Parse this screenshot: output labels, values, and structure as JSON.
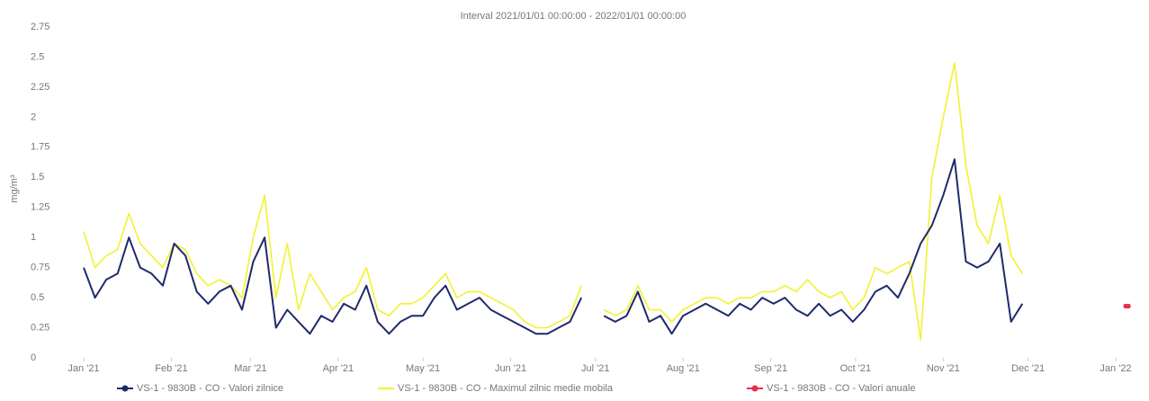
{
  "chart_data": {
    "type": "line",
    "title": "Interval 2021/01/01 00:00:00 - 2022/01/01 00:00:00",
    "y_label": "mg/m³",
    "xlim": [
      0,
      372
    ],
    "xticks": [
      {
        "value": 0,
        "label": "Jan '21"
      },
      {
        "value": 31,
        "label": "Feb '21"
      },
      {
        "value": 59,
        "label": "Mar '21"
      },
      {
        "value": 90,
        "label": "Apr '21"
      },
      {
        "value": 120,
        "label": "May '21"
      },
      {
        "value": 151,
        "label": "Jun '21"
      },
      {
        "value": 181,
        "label": "Jul '21"
      },
      {
        "value": 212,
        "label": "Aug '21"
      },
      {
        "value": 243,
        "label": "Sep '21"
      },
      {
        "value": 273,
        "label": "Oct '21"
      },
      {
        "value": 304,
        "label": "Nov '21"
      },
      {
        "value": 334,
        "label": "Dec '21"
      },
      {
        "value": 365,
        "label": "Jan '22"
      }
    ],
    "ylim": [
      0,
      2.75
    ],
    "yticks": [
      0,
      0.25,
      0.5,
      0.75,
      1,
      1.25,
      1.5,
      1.75,
      2,
      2.25,
      2.5,
      2.75
    ],
    "x": [
      0,
      4,
      8,
      12,
      16,
      20,
      24,
      28,
      32,
      36,
      40,
      44,
      48,
      52,
      56,
      60,
      64,
      68,
      72,
      76,
      80,
      84,
      88,
      92,
      96,
      100,
      104,
      108,
      112,
      116,
      120,
      124,
      128,
      132,
      136,
      140,
      144,
      148,
      152,
      156,
      160,
      164,
      168,
      172,
      176,
      180,
      184,
      188,
      192,
      196,
      200,
      204,
      208,
      212,
      216,
      220,
      224,
      228,
      232,
      236,
      240,
      244,
      248,
      252,
      256,
      260,
      264,
      268,
      272,
      276,
      280,
      284,
      288,
      292,
      296,
      300,
      304,
      308,
      312,
      316,
      320,
      324,
      328,
      332
    ],
    "series": [
      {
        "name": "VS-1 - 9830B - CO - Valori zilnice",
        "color": "#1f2a6b",
        "values": [
          0.75,
          0.5,
          0.65,
          0.7,
          1.0,
          0.75,
          0.7,
          0.6,
          0.95,
          0.85,
          0.55,
          0.45,
          0.55,
          0.6,
          0.4,
          0.8,
          1.0,
          0.25,
          0.4,
          0.3,
          0.2,
          0.35,
          0.3,
          0.45,
          0.4,
          0.6,
          0.3,
          0.2,
          0.3,
          0.35,
          0.35,
          0.5,
          0.6,
          0.4,
          0.45,
          0.5,
          0.4,
          0.35,
          0.3,
          0.25,
          0.2,
          0.2,
          0.25,
          0.3,
          0.5,
          null,
          0.35,
          0.3,
          0.35,
          0.55,
          0.3,
          0.35,
          0.2,
          0.35,
          0.4,
          0.45,
          0.4,
          0.35,
          0.45,
          0.4,
          0.5,
          0.45,
          0.5,
          0.4,
          0.35,
          0.45,
          0.35,
          0.4,
          0.3,
          0.4,
          0.55,
          0.6,
          0.5,
          0.7,
          0.95,
          1.1,
          1.35,
          1.65,
          0.8,
          0.75,
          0.8,
          0.95,
          0.3,
          0.45
        ]
      },
      {
        "name": "VS-1 - 9830B - CO - Maximul zilnic medie mobila",
        "color": "#f2f230",
        "values": [
          1.05,
          0.75,
          0.85,
          0.9,
          1.2,
          0.95,
          0.85,
          0.75,
          0.95,
          0.9,
          0.7,
          0.6,
          0.65,
          0.6,
          0.5,
          1.0,
          1.35,
          0.5,
          0.95,
          0.4,
          0.7,
          0.55,
          0.4,
          0.5,
          0.55,
          0.75,
          0.4,
          0.35,
          0.45,
          0.45,
          0.5,
          0.6,
          0.7,
          0.5,
          0.55,
          0.55,
          0.5,
          0.45,
          0.4,
          0.3,
          0.25,
          0.25,
          0.3,
          0.35,
          0.6,
          null,
          0.4,
          0.35,
          0.4,
          0.6,
          0.4,
          0.4,
          0.3,
          0.4,
          0.45,
          0.5,
          0.5,
          0.45,
          0.5,
          0.5,
          0.55,
          0.55,
          0.6,
          0.55,
          0.65,
          0.55,
          0.5,
          0.55,
          0.4,
          0.5,
          0.75,
          0.7,
          0.75,
          0.8,
          0.15,
          1.5,
          2.0,
          2.45,
          1.6,
          1.1,
          0.95,
          1.35,
          0.85,
          0.7
        ]
      },
      {
        "name": "VS-1 - 9830B - CO - Valori anuale",
        "color": "#e8304a",
        "x": [
          369
        ],
        "values": [
          0.43
        ]
      }
    ]
  }
}
